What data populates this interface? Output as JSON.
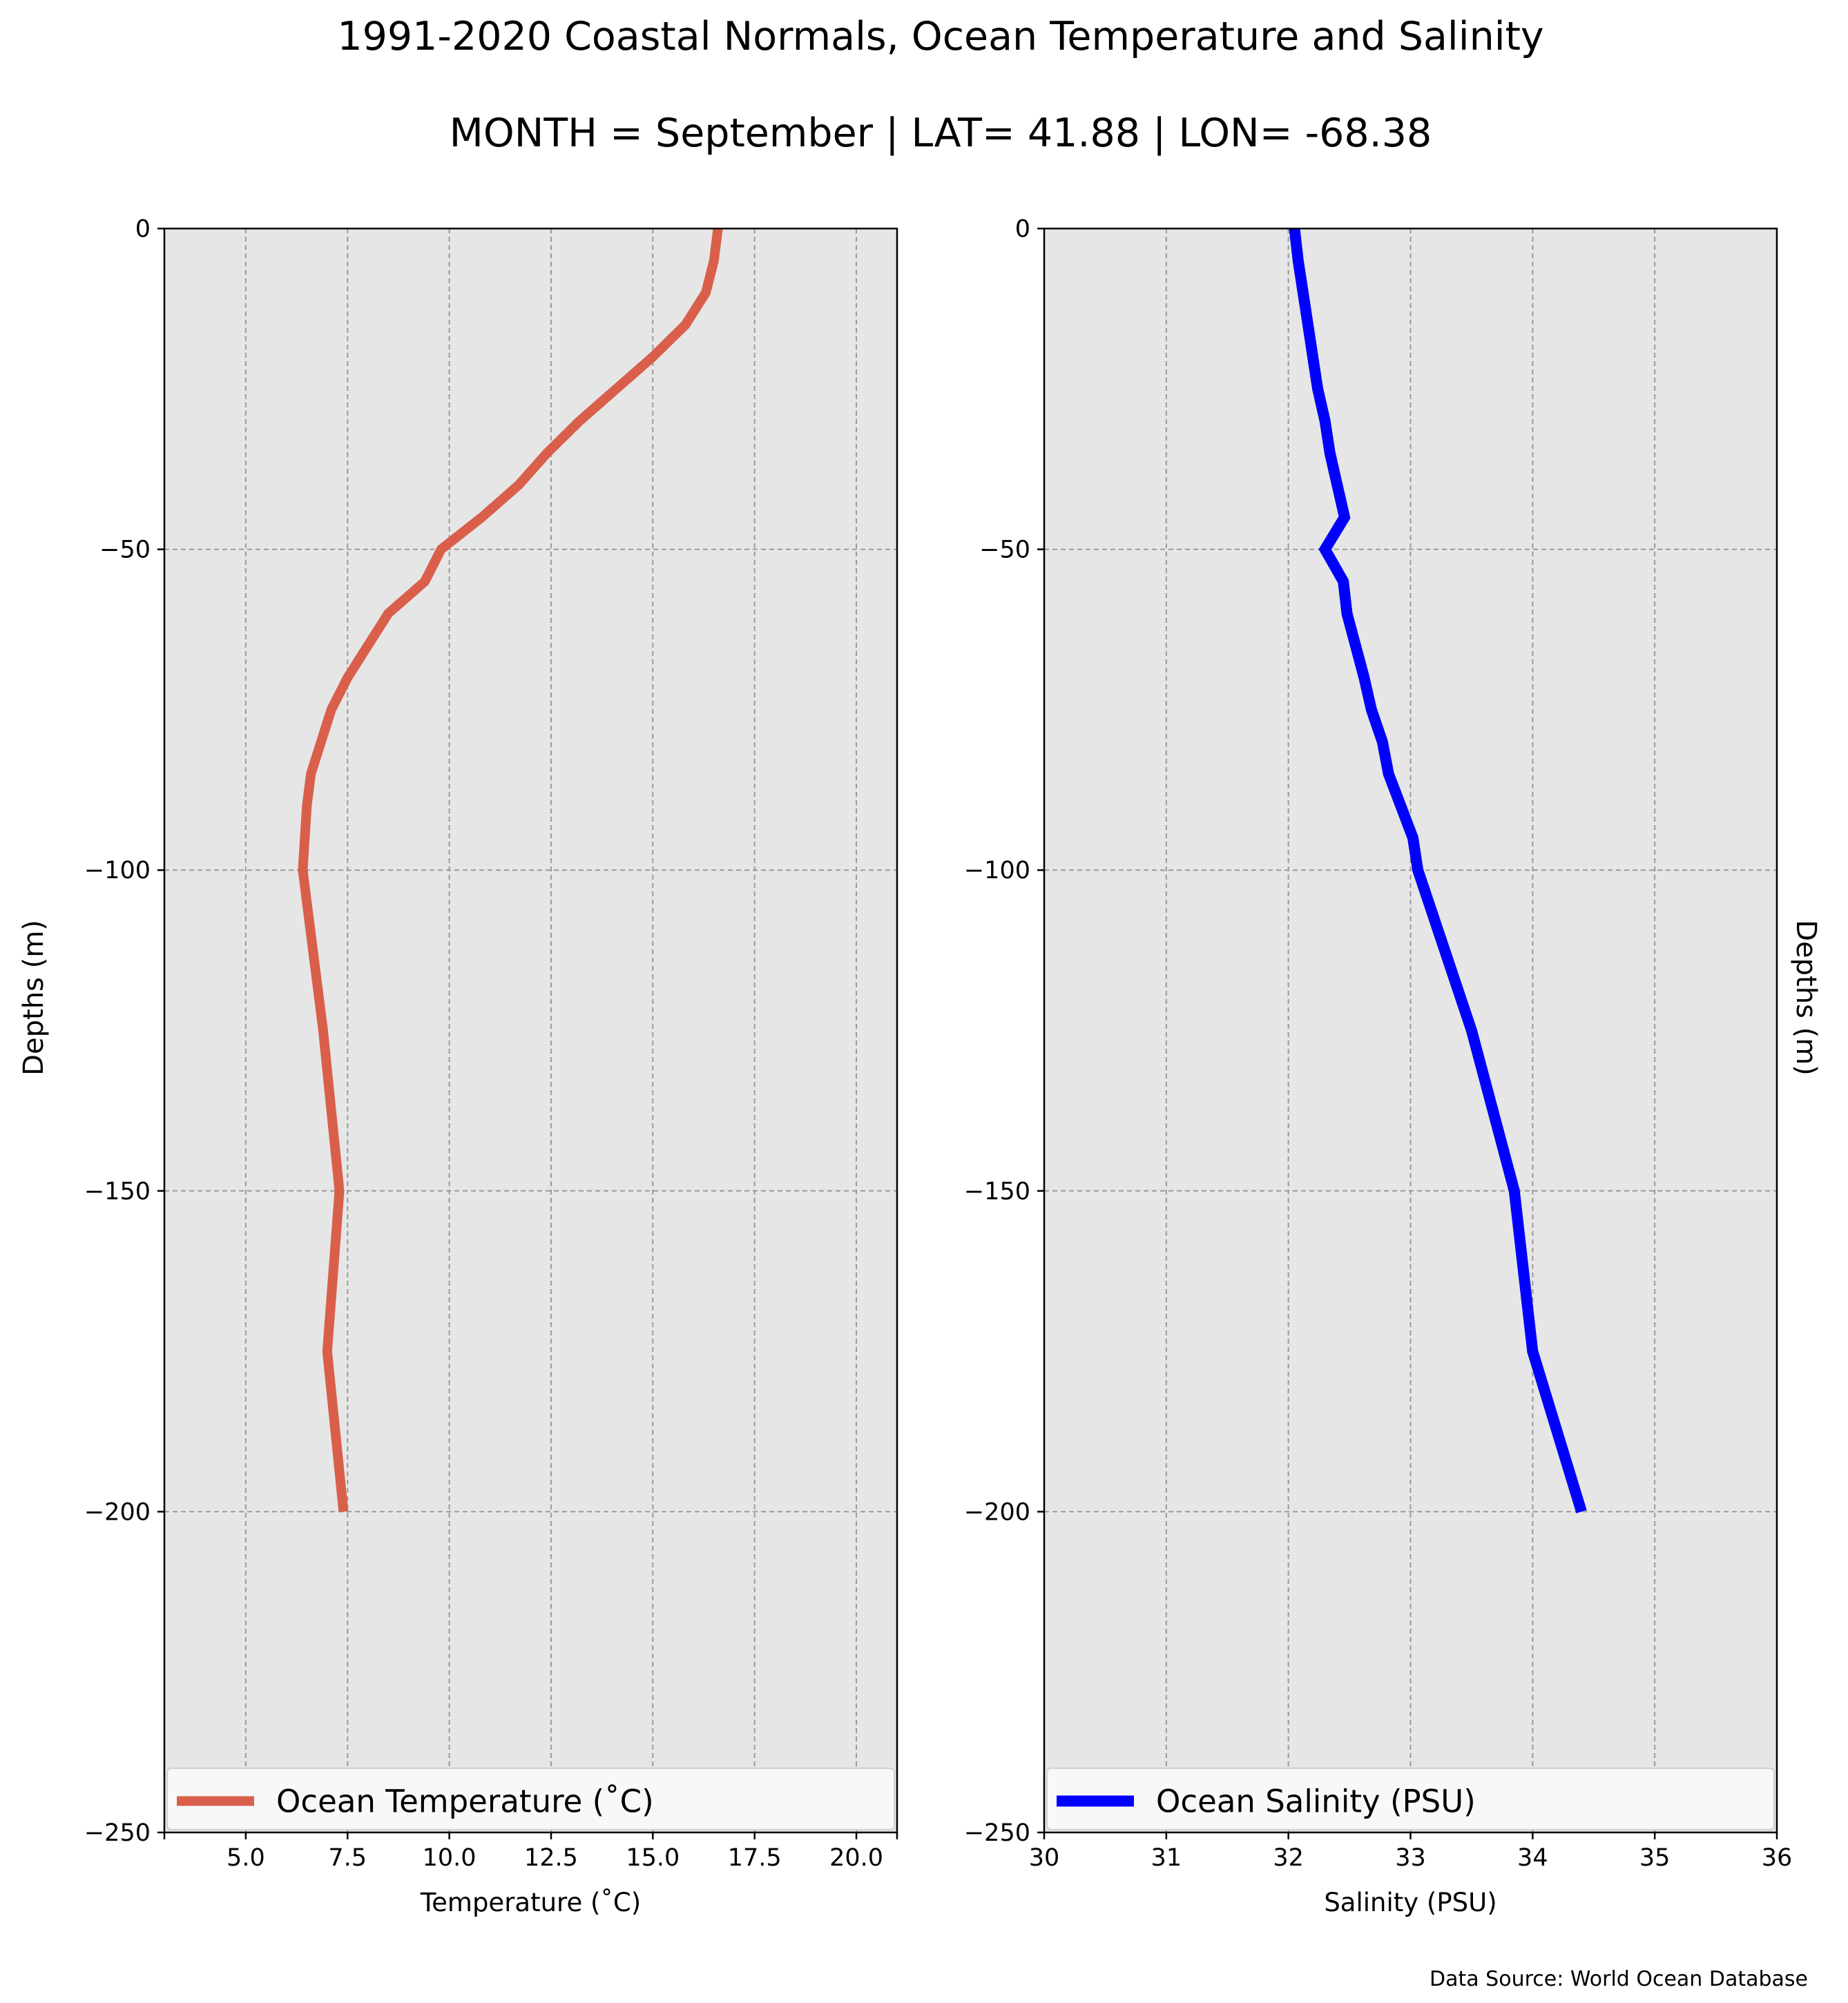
{
  "figure": {
    "title": "1991-2020 Coastal Normals, Ocean Temperature and Salinity",
    "subtitle": "MONTH = September | LAT= 41.88 | LON= -68.38",
    "source": "Data Source: World Ocean Database"
  },
  "colors": {
    "panel_bg": "#e6e6e6",
    "grid": "#9a9a9a",
    "temperature_line": "#d95f4b",
    "salinity_line": "#0000ff"
  },
  "chart_data": [
    {
      "type": "line",
      "ylabel": "Depths (m)",
      "xlabel": "Temperature ($^\\circ$C)",
      "xlabel_display": "Temperature (˚C)",
      "xlim": [
        3.0,
        21.0
      ],
      "ylim": [
        -250,
        0
      ],
      "x_ticks": [
        5.0,
        7.5,
        10.0,
        12.5,
        15.0,
        17.5,
        20.0
      ],
      "x_tick_labels": [
        "5.0",
        "7.5",
        "10.0",
        "12.5",
        "15.0",
        "17.5",
        "20.0"
      ],
      "y_ticks": [
        0,
        -50,
        -100,
        -150,
        -200,
        -250
      ],
      "y_tick_labels": [
        "0",
        "−50",
        "−100",
        "−150",
        "−200",
        "−250"
      ],
      "grid": true,
      "legend_position": "bottom",
      "series": [
        {
          "name": "Ocean Temperature (˚C)",
          "x": [
            16.6,
            16.5,
            16.3,
            15.8,
            15.0,
            14.1,
            13.2,
            12.4,
            11.7,
            10.8,
            9.8,
            9.4,
            8.5,
            8.0,
            7.5,
            7.1,
            6.6,
            6.5,
            6.4,
            6.9,
            7.3,
            7.0,
            7.4
          ],
          "y": [
            0,
            -5,
            -10,
            -15,
            -20,
            -25,
            -30,
            -35,
            -40,
            -45,
            -50,
            -55,
            -60,
            -65,
            -70,
            -75,
            -85,
            -90,
            -100,
            -125,
            -150,
            -175,
            -200
          ]
        }
      ]
    },
    {
      "type": "line",
      "ylabel": "Depths (m)",
      "xlabel": "Salinity (PSU)",
      "xlim": [
        30,
        36
      ],
      "ylim": [
        -250,
        0
      ],
      "x_ticks": [
        30,
        31,
        32,
        33,
        34,
        35,
        36
      ],
      "x_tick_labels": [
        "30",
        "31",
        "32",
        "33",
        "34",
        "35",
        "36"
      ],
      "y_ticks": [
        0,
        -50,
        -100,
        -150,
        -200,
        -250
      ],
      "y_tick_labels": [
        "0",
        "−50",
        "−100",
        "−150",
        "−200",
        "−250"
      ],
      "grid": true,
      "legend_position": "bottom",
      "series": [
        {
          "name": "Ocean Salinity (PSU)",
          "x": [
            32.05,
            32.08,
            32.12,
            32.16,
            32.2,
            32.24,
            32.3,
            32.34,
            32.4,
            32.46,
            32.3,
            32.45,
            32.48,
            32.55,
            32.62,
            32.68,
            32.77,
            32.82,
            32.92,
            33.02,
            33.06,
            33.5,
            33.85,
            34.0,
            34.4
          ],
          "y": [
            0,
            -5,
            -10,
            -15,
            -20,
            -25,
            -30,
            -35,
            -40,
            -45,
            -50,
            -55,
            -60,
            -65,
            -70,
            -75,
            -80,
            -85,
            -90,
            -95,
            -100,
            -125,
            -150,
            -175,
            -200
          ]
        }
      ]
    }
  ]
}
